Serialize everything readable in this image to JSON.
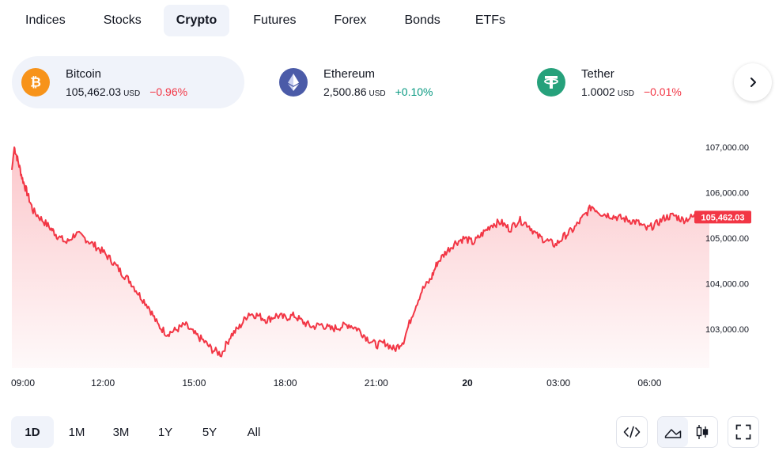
{
  "tabs": [
    {
      "label": "Indices"
    },
    {
      "label": "Stocks"
    },
    {
      "label": "Crypto",
      "active": true
    },
    {
      "label": "Futures"
    },
    {
      "label": "Forex"
    },
    {
      "label": "Bonds"
    },
    {
      "label": "ETFs"
    }
  ],
  "tickers": [
    {
      "name": "Bitcoin",
      "price": "105,462.03",
      "currency": "USD",
      "change": "−0.96%",
      "direction": "down",
      "icon": "bitcoin-icon",
      "color": "#f7931a",
      "active": true
    },
    {
      "name": "Ethereum",
      "price": "2,500.86",
      "currency": "USD",
      "change": "+0.10%",
      "direction": "up",
      "icon": "ethereum-icon",
      "color": "#4b5ba8"
    },
    {
      "name": "Tether",
      "price": "1.0002",
      "currency": "USD",
      "change": "−0.01%",
      "direction": "down",
      "icon": "tether-icon",
      "color": "#26a17b"
    }
  ],
  "next_icon": "chevron-right-icon",
  "chart_data": {
    "type": "area",
    "series_color": "#f23645",
    "last_price_label": "105,462.03",
    "y_ticks": [
      "107,000.00",
      "106,000.00",
      "105,000.00",
      "104,000.00",
      "103,000.00"
    ],
    "y_tick_values": [
      107000,
      106000,
      105000,
      104000,
      103000
    ],
    "x_ticks": [
      "09:00",
      "12:00",
      "15:00",
      "18:00",
      "21:00",
      "20",
      "03:00",
      "06:00"
    ],
    "x_tick_hours": [
      0,
      3,
      6,
      9,
      12,
      15,
      18,
      21
    ],
    "bold_x_tick": "20",
    "ylim": [
      102400,
      107300
    ],
    "x_hours": [
      0,
      0.08,
      0.2,
      0.35,
      0.5,
      0.7,
      1,
      1.3,
      1.5,
      1.8,
      2.1,
      2.4,
      2.7,
      3.0,
      3.3,
      3.6,
      3.9,
      4.2,
      4.5,
      4.8,
      5.1,
      5.4,
      5.7,
      6.0,
      6.3,
      6.6,
      6.9,
      7.2,
      7.5,
      7.8,
      8.1,
      8.4,
      8.7,
      9.0,
      9.3,
      9.6,
      9.9,
      10.2,
      10.5,
      10.8,
      11.1,
      11.4,
      11.7,
      12.0,
      12.3,
      12.6,
      12.9,
      13.2,
      13.5,
      13.8,
      14.0,
      14.3,
      14.6,
      14.9,
      15.2,
      15.5,
      15.8,
      16.1,
      16.4,
      16.7,
      17.0,
      17.3,
      17.6,
      17.9,
      18.2,
      18.5,
      18.8,
      19.1,
      19.4,
      19.7,
      20.0,
      20.3,
      20.6,
      20.9,
      21.2,
      21.5,
      21.8,
      22.1,
      22.4,
      22.7,
      22.97
    ],
    "y_values": [
      106500,
      107000,
      106700,
      106300,
      106000,
      105600,
      105400,
      105200,
      105050,
      104900,
      105100,
      105000,
      104850,
      104700,
      104500,
      104250,
      104050,
      103750,
      103500,
      103100,
      102900,
      102980,
      103100,
      102900,
      102750,
      102550,
      102450,
      102850,
      103050,
      103350,
      103300,
      103200,
      103300,
      103250,
      103300,
      103150,
      103050,
      103100,
      103000,
      103050,
      103100,
      103000,
      102800,
      102650,
      102700,
      102550,
      102750,
      103350,
      103850,
      104100,
      104450,
      104700,
      104900,
      105000,
      104900,
      105100,
      105300,
      105350,
      105200,
      105400,
      105300,
      105050,
      104950,
      104850,
      105050,
      105200,
      105450,
      105700,
      105550,
      105500,
      105450,
      105400,
      105350,
      105200,
      105300,
      105450,
      105500,
      105400,
      105462,
      105500,
      105462
    ]
  },
  "ranges": [
    {
      "label": "1D",
      "active": true
    },
    {
      "label": "1M"
    },
    {
      "label": "3M"
    },
    {
      "label": "1Y"
    },
    {
      "label": "5Y"
    },
    {
      "label": "All"
    }
  ],
  "tools": {
    "embed_icon": "code-icon",
    "area_icon": "area-chart-icon",
    "candle_icon": "candlestick-icon",
    "fullscreen_icon": "fullscreen-icon"
  }
}
